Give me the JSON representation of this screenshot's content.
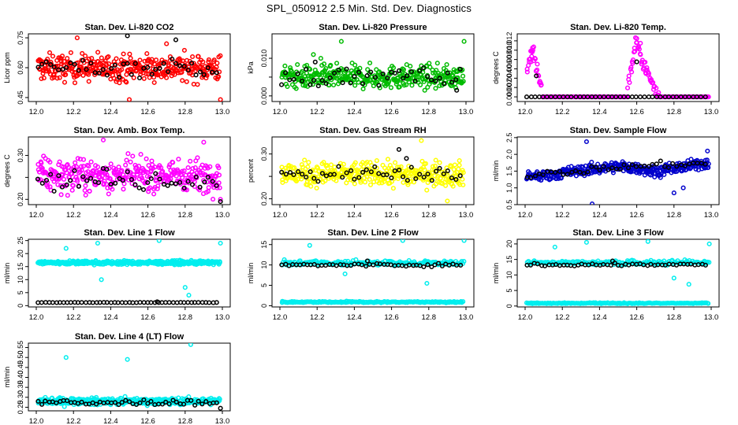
{
  "page": {
    "title": "SPL_050912  2.5 Min. Std. Dev. Diagnostics"
  },
  "chart_data": [
    {
      "type": "scatter",
      "title": "Stan. Dev. Li-820 CO2",
      "xlabel": "",
      "ylabel": "Licor ppm",
      "xlim": [
        12.0,
        13.0
      ],
      "ylim": [
        0.43,
        0.77
      ],
      "xticks": [
        "12.0",
        "12.2",
        "12.4",
        "12.6",
        "12.8",
        "13.0"
      ],
      "yticks": [
        0.45,
        0.6,
        0.75
      ],
      "ytick_labels": [
        "0.45",
        "0.60",
        "0.75"
      ],
      "series": [
        {
          "color": "#ff0000",
          "values_summary": {
            "n": 360,
            "center": 0.6,
            "spread": 0.055,
            "min": 0.44,
            "max": 0.75
          },
          "highlights": [
            [
              12.22,
              0.75
            ],
            [
              12.5,
              0.44
            ],
            [
              12.7,
              0.72
            ],
            [
              12.99,
              0.44
            ]
          ]
        },
        {
          "color": "#000000",
          "values_summary": {
            "n": 45,
            "center": 0.6,
            "spread": 0.04
          },
          "highlights": [
            [
              12.49,
              0.76
            ],
            [
              12.75,
              0.74
            ]
          ]
        }
      ]
    },
    {
      "type": "scatter",
      "title": "Stan. Dev. Li-820 Pressure",
      "xlabel": "",
      "ylabel": "kPa",
      "xlim": [
        12.0,
        13.0
      ],
      "ylim": [
        -0.0015,
        0.0165
      ],
      "xticks": [
        "12.0",
        "12.2",
        "12.4",
        "12.6",
        "12.8",
        "13.0"
      ],
      "yticks": [
        0.0,
        0.005,
        0.01
      ],
      "ytick_labels": [
        "0.000",
        "",
        "0.010"
      ],
      "series": [
        {
          "color": "#00bb00",
          "values_summary": {
            "n": 360,
            "center": 0.005,
            "spread": 0.0025,
            "min": 0.0,
            "max": 0.0145
          },
          "highlights": [
            [
              12.33,
              0.0145
            ],
            [
              12.99,
              0.0145
            ],
            [
              12.18,
              0.011
            ],
            [
              12.22,
              0.01
            ]
          ]
        },
        {
          "color": "#000000",
          "values_summary": {
            "n": 45,
            "center": 0.005,
            "spread": 0.002
          },
          "highlights": [
            [
              12.19,
              0.009
            ],
            [
              12.95,
              0.0015
            ]
          ]
        }
      ]
    },
    {
      "type": "scatter",
      "title": "Stan. Dev. Li-820 Temp.",
      "xlabel": "",
      "ylabel": "degrees C",
      "xlim": [
        12.0,
        13.0
      ],
      "ylim": [
        -0.001,
        0.0135
      ],
      "xticks": [
        "12.0",
        "12.2",
        "12.4",
        "12.6",
        "12.8",
        "13.0"
      ],
      "yticks": [
        0.0,
        0.002,
        0.004,
        0.006,
        0.008,
        0.01,
        0.012
      ],
      "ytick_labels": [
        "0.000",
        "0.002",
        "0.004",
        "0.006",
        "0.008",
        "0.010",
        "0.012"
      ],
      "series": [
        {
          "color": "#ff00ff",
          "values_summary": {
            "n": 300,
            "baseline": 0.0,
            "peaks": [
              [
                12.04,
                0.0105
              ],
              [
                12.6,
                0.0125
              ]
            ]
          },
          "highlights": [
            [
              12.03,
              0.0098
            ],
            [
              12.04,
              0.0105
            ],
            [
              12.6,
              0.0125
            ],
            [
              12.62,
              0.0115
            ]
          ]
        },
        {
          "color": "#000000",
          "values_summary": {
            "n": 45,
            "baseline": 0.0
          },
          "highlights": [
            [
              12.06,
              0.0045
            ],
            [
              12.6,
              0.0075
            ]
          ]
        }
      ]
    },
    {
      "type": "scatter",
      "title": "Stan. Dev. Amb. Box Temp.",
      "xlabel": "",
      "ylabel": "degrees C",
      "xlim": [
        12.0,
        13.0
      ],
      "ylim": [
        0.188,
        0.342
      ],
      "xticks": [
        "12.0",
        "12.2",
        "12.4",
        "12.6",
        "12.8",
        "13.0"
      ],
      "yticks": [
        0.2,
        0.25,
        0.3
      ],
      "ytick_labels": [
        "0.20",
        "",
        "0.30"
      ],
      "series": [
        {
          "color": "#ff00ff",
          "values_summary": {
            "n": 360,
            "center": 0.255,
            "spread": 0.03,
            "min": 0.195,
            "max": 0.335
          },
          "highlights": [
            [
              12.36,
              0.335
            ],
            [
              12.9,
              0.33
            ],
            [
              12.99,
              0.2
            ]
          ]
        },
        {
          "color": "#000000",
          "values_summary": {
            "n": 45,
            "center": 0.245,
            "spread": 0.02
          },
          "highlights": [
            [
              12.99,
              0.195
            ]
          ]
        }
      ]
    },
    {
      "type": "scatter",
      "title": "Stan. Dev. Gas Stream RH",
      "xlabel": "",
      "ylabel": "percent",
      "xlim": [
        12.0,
        13.0
      ],
      "ylim": [
        0.187,
        0.338
      ],
      "xticks": [
        "12.0",
        "12.2",
        "12.4",
        "12.6",
        "12.8",
        "13.0"
      ],
      "yticks": [
        0.2,
        0.25,
        0.3
      ],
      "ytick_labels": [
        "0.20",
        "",
        "0.30"
      ],
      "series": [
        {
          "color": "#ffff00",
          "values_summary": {
            "n": 360,
            "center": 0.255,
            "spread": 0.022,
            "min": 0.192,
            "max": 0.33
          },
          "highlights": [
            [
              12.76,
              0.33
            ],
            [
              12.9,
              0.195
            ]
          ]
        },
        {
          "color": "#000000",
          "values_summary": {
            "n": 45,
            "center": 0.255,
            "spread": 0.015
          },
          "highlights": [
            [
              12.64,
              0.31
            ],
            [
              12.68,
              0.29
            ]
          ]
        }
      ]
    },
    {
      "type": "scatter",
      "title": "Stan. Dev. Sample Flow",
      "xlabel": "",
      "ylabel": "ml/min",
      "xlim": [
        12.0,
        13.0
      ],
      "ylim": [
        0.5,
        2.52
      ],
      "xticks": [
        "12.0",
        "12.2",
        "12.4",
        "12.6",
        "12.8",
        "13.0"
      ],
      "yticks": [
        0.5,
        1.0,
        1.5,
        2.0,
        2.5
      ],
      "ytick_labels": [
        "0.5",
        "1.0",
        "1.5",
        "2.0",
        "2.5"
      ],
      "series": [
        {
          "color": "#0000cc",
          "values_summary": {
            "n": 360,
            "trend": [
              [
                12.0,
                1.3
              ],
              [
                12.5,
                1.65
              ],
              [
                12.7,
                1.5
              ],
              [
                13.0,
                1.75
              ]
            ],
            "spread": 0.08
          },
          "highlights": [
            [
              12.33,
              2.38
            ],
            [
              12.36,
              0.52
            ],
            [
              12.8,
              0.85
            ],
            [
              12.85,
              1.0
            ],
            [
              12.98,
              2.1
            ]
          ]
        },
        {
          "color": "#000000",
          "values_summary": {
            "n": 45,
            "trend": [
              [
                12.0,
                1.35
              ],
              [
                12.5,
                1.62
              ],
              [
                13.0,
                1.75
              ]
            ]
          },
          "highlights": []
        }
      ]
    },
    {
      "type": "scatter",
      "title": "Stan. Dev. Line 1 Flow",
      "xlabel": "",
      "ylabel": "ml/min",
      "xlim": [
        12.0,
        13.0
      ],
      "ylim": [
        -0.5,
        25.5
      ],
      "xticks": [
        "12.0",
        "12.2",
        "12.4",
        "12.6",
        "12.8",
        "13.0"
      ],
      "yticks": [
        0,
        5,
        10,
        15,
        20,
        25
      ],
      "ytick_labels": [
        "0",
        "5",
        "10",
        "15",
        "20",
        "25"
      ],
      "series": [
        {
          "color": "#00eeee",
          "values_summary": {
            "n": 360,
            "center": 16.5,
            "spread": 0.6
          },
          "highlights": [
            [
              12.16,
              22
            ],
            [
              12.33,
              24
            ],
            [
              12.35,
              10
            ],
            [
              12.66,
              25
            ],
            [
              12.8,
              7
            ],
            [
              12.82,
              4
            ],
            [
              12.99,
              24
            ]
          ]
        },
        {
          "color": "#000000",
          "values_summary": {
            "n": 50,
            "center": 1.2,
            "spread": 0.05
          },
          "highlights": [
            [
              12.65,
              1.5
            ]
          ]
        }
      ]
    },
    {
      "type": "scatter",
      "title": "Stan. Dev. Line 2 Flow",
      "xlabel": "",
      "ylabel": "ml/min",
      "xlim": [
        12.0,
        13.0
      ],
      "ylim": [
        -0.3,
        16.3
      ],
      "xticks": [
        "12.0",
        "12.2",
        "12.4",
        "12.6",
        "12.8",
        "13.0"
      ],
      "yticks": [
        0,
        5,
        10,
        15
      ],
      "ytick_labels": [
        "0",
        "5",
        "10",
        "15"
      ],
      "series": [
        {
          "color": "#00eeee",
          "values_summary": {
            "n": 360,
            "center": 10.5,
            "spread": 0.5,
            "low_band": 0.9
          },
          "highlights": [
            [
              12.16,
              14.8
            ],
            [
              12.35,
              7.8
            ],
            [
              12.66,
              16
            ],
            [
              12.79,
              5.5
            ],
            [
              12.99,
              16
            ]
          ]
        },
        {
          "color": "#000000",
          "values_summary": {
            "n": 50,
            "center": 10.0,
            "spread": 0.3
          },
          "highlights": [
            [
              12.47,
              11
            ]
          ]
        }
      ]
    },
    {
      "type": "scatter",
      "title": "Stan. Dev. Line 3 Flow",
      "xlabel": "",
      "ylabel": "ml/min",
      "xlim": [
        12.0,
        13.0
      ],
      "ylim": [
        -0.3,
        21.5
      ],
      "xticks": [
        "12.0",
        "12.2",
        "12.4",
        "12.6",
        "12.8",
        "13.0"
      ],
      "yticks": [
        0,
        5,
        10,
        15,
        20
      ],
      "ytick_labels": [
        "0",
        "5",
        "10",
        "15",
        "20"
      ],
      "series": [
        {
          "color": "#00eeee",
          "values_summary": {
            "n": 360,
            "center": 14.0,
            "spread": 0.6,
            "low_band": 0.9
          },
          "highlights": [
            [
              12.16,
              19
            ],
            [
              12.33,
              20.5
            ],
            [
              12.66,
              20.8
            ],
            [
              12.8,
              9
            ],
            [
              12.88,
              7
            ],
            [
              12.99,
              20
            ]
          ]
        },
        {
          "color": "#000000",
          "values_summary": {
            "n": 50,
            "center": 13.3,
            "spread": 0.3
          },
          "highlights": [
            [
              12.47,
              14.5
            ]
          ]
        }
      ]
    },
    {
      "type": "scatter",
      "title": "Stan. Dev. Line 4 (LT) Flow",
      "xlabel": "",
      "ylabel": "ml/min",
      "xlim": [
        12.0,
        13.0
      ],
      "ylim": [
        0.232,
        0.572
      ],
      "xticks": [
        "12.0",
        "12.2",
        "12.4",
        "12.6",
        "12.8",
        "13.0"
      ],
      "yticks": [
        0.25,
        0.3,
        0.35,
        0.4,
        0.45,
        0.5,
        0.55
      ],
      "ytick_labels": [
        "0.25",
        "0.30",
        "0.35",
        "0.40",
        "0.45",
        "0.50",
        "0.55"
      ],
      "series": [
        {
          "color": "#00eeee",
          "values_summary": {
            "n": 360,
            "center": 0.28,
            "spread": 0.014
          },
          "highlights": [
            [
              12.16,
              0.5
            ],
            [
              12.49,
              0.49
            ],
            [
              12.83,
              0.565
            ]
          ]
        },
        {
          "color": "#000000",
          "values_summary": {
            "n": 50,
            "center": 0.275,
            "spread": 0.012
          },
          "highlights": [
            [
              12.99,
              0.245
            ]
          ]
        }
      ]
    }
  ]
}
